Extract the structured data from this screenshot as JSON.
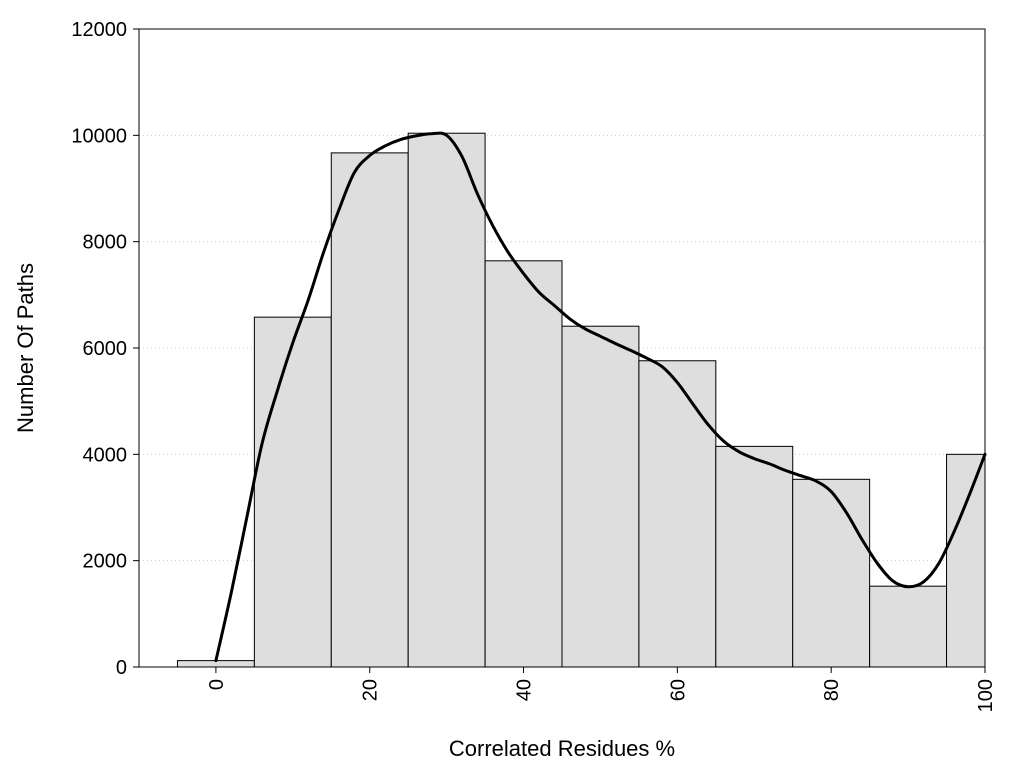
{
  "chart_data": {
    "type": "bar",
    "title": "",
    "xlabel": "Correlated Residues %",
    "ylabel": "Number Of Paths",
    "x": [
      0,
      10,
      20,
      30,
      40,
      50,
      60,
      70,
      80,
      90,
      100
    ],
    "values": [
      120,
      6580,
      9670,
      10040,
      7640,
      6410,
      5760,
      4150,
      3530,
      1520,
      4000
    ],
    "bin_width": 10,
    "xlim": [
      -10,
      100
    ],
    "ylim": [
      0,
      12000
    ],
    "xticks": [
      0,
      20,
      40,
      60,
      80,
      100
    ],
    "yticks": [
      0,
      2000,
      4000,
      6000,
      8000,
      10000,
      12000
    ],
    "grid": "horizontal-dotted",
    "legend": "none",
    "smooth_curve": {
      "x": [
        0,
        2,
        4,
        6,
        8,
        10,
        12,
        14,
        16,
        18,
        20,
        22,
        24,
        26,
        28,
        30,
        32,
        34,
        36,
        38,
        40,
        42,
        44,
        46,
        48,
        50,
        52,
        54,
        56,
        58,
        60,
        62,
        64,
        66,
        68,
        70,
        72,
        74,
        76,
        78,
        80,
        82,
        84,
        86,
        88,
        90,
        92,
        94,
        96,
        98,
        100
      ],
      "y": [
        120,
        1400,
        2800,
        4200,
        5200,
        6100,
        6900,
        7800,
        8600,
        9300,
        9620,
        9800,
        9920,
        9990,
        10030,
        10000,
        9600,
        8900,
        8300,
        7800,
        7400,
        7050,
        6800,
        6550,
        6360,
        6220,
        6080,
        5950,
        5810,
        5650,
        5350,
        4950,
        4560,
        4250,
        4050,
        3920,
        3820,
        3700,
        3600,
        3500,
        3300,
        2900,
        2400,
        1950,
        1620,
        1510,
        1600,
        1950,
        2550,
        3250,
        4000
      ]
    },
    "colors": {
      "bar_fill": "#dedede",
      "bar_stroke": "#000000",
      "curve": "#000000",
      "grid": "#cccccc"
    }
  }
}
